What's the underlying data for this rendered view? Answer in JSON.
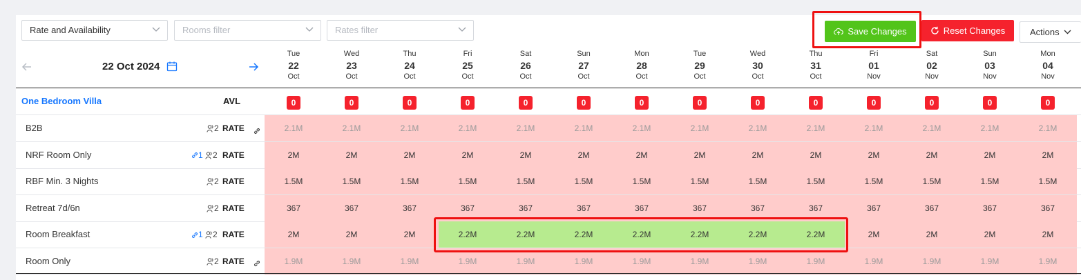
{
  "toolbar": {
    "view_select": "Rate and Availability",
    "rooms_filter_placeholder": "Rooms filter",
    "rates_filter_placeholder": "Rates filter",
    "save_label": "Save Changes",
    "reset_label": "Reset Changes",
    "actions_label": "Actions"
  },
  "date_nav": {
    "current_date": "22 Oct 2024"
  },
  "days": [
    {
      "dow": "Tue",
      "day": "22",
      "month": "Oct"
    },
    {
      "dow": "Wed",
      "day": "23",
      "month": "Oct"
    },
    {
      "dow": "Thu",
      "day": "24",
      "month": "Oct"
    },
    {
      "dow": "Fri",
      "day": "25",
      "month": "Oct"
    },
    {
      "dow": "Sat",
      "day": "26",
      "month": "Oct"
    },
    {
      "dow": "Sun",
      "day": "27",
      "month": "Oct"
    },
    {
      "dow": "Mon",
      "day": "28",
      "month": "Oct"
    },
    {
      "dow": "Tue",
      "day": "29",
      "month": "Oct"
    },
    {
      "dow": "Wed",
      "day": "30",
      "month": "Oct"
    },
    {
      "dow": "Thu",
      "day": "31",
      "month": "Oct"
    },
    {
      "dow": "Fri",
      "day": "01",
      "month": "Nov"
    },
    {
      "dow": "Sat",
      "day": "02",
      "month": "Nov"
    },
    {
      "dow": "Sun",
      "day": "03",
      "month": "Nov"
    },
    {
      "dow": "Mon",
      "day": "04",
      "month": "Nov"
    }
  ],
  "room": {
    "name": "One Bedroom Villa",
    "avl_label": "AVL",
    "availability": [
      "0",
      "0",
      "0",
      "0",
      "0",
      "0",
      "0",
      "0",
      "0",
      "0",
      "0",
      "0",
      "0",
      "0"
    ]
  },
  "rate_label": "RATE",
  "rates": [
    {
      "name": "B2B",
      "linked": "",
      "occupancy": "2",
      "derived": true,
      "values": [
        "2.1M",
        "2.1M",
        "2.1M",
        "2.1M",
        "2.1M",
        "2.1M",
        "2.1M",
        "2.1M",
        "2.1M",
        "2.1M",
        "2.1M",
        "2.1M",
        "2.1M",
        "2.1M"
      ],
      "changed": []
    },
    {
      "name": "NRF Room Only",
      "linked": "1",
      "occupancy": "2",
      "derived": false,
      "values": [
        "2M",
        "2M",
        "2M",
        "2M",
        "2M",
        "2M",
        "2M",
        "2M",
        "2M",
        "2M",
        "2M",
        "2M",
        "2M",
        "2M"
      ],
      "changed": []
    },
    {
      "name": "RBF Min. 3 Nights",
      "linked": "",
      "occupancy": "2",
      "derived": false,
      "values": [
        "1.5M",
        "1.5M",
        "1.5M",
        "1.5M",
        "1.5M",
        "1.5M",
        "1.5M",
        "1.5M",
        "1.5M",
        "1.5M",
        "1.5M",
        "1.5M",
        "1.5M",
        "1.5M"
      ],
      "changed": []
    },
    {
      "name": "Retreat 7d/6n",
      "linked": "",
      "occupancy": "2",
      "derived": false,
      "values": [
        "367",
        "367",
        "367",
        "367",
        "367",
        "367",
        "367",
        "367",
        "367",
        "367",
        "367",
        "367",
        "367",
        "367"
      ],
      "changed": []
    },
    {
      "name": "Room Breakfast",
      "linked": "1",
      "occupancy": "2",
      "derived": false,
      "values": [
        "2M",
        "2M",
        "2M",
        "2.2M",
        "2.2M",
        "2.2M",
        "2.2M",
        "2.2M",
        "2.2M",
        "2.2M",
        "2M",
        "2M",
        "2M",
        "2M"
      ],
      "changed": [
        3,
        4,
        5,
        6,
        7,
        8,
        9
      ]
    },
    {
      "name": "Room Only",
      "linked": "",
      "occupancy": "2",
      "derived": true,
      "values": [
        "1.9M",
        "1.9M",
        "1.9M",
        "1.9M",
        "1.9M",
        "1.9M",
        "1.9M",
        "1.9M",
        "1.9M",
        "1.9M",
        "1.9M",
        "1.9M",
        "1.9M",
        "1.9M"
      ],
      "changed": []
    }
  ],
  "colors": {
    "accent_blue": "#1677ff",
    "save_green": "#52c41a",
    "reset_red": "#f5222d",
    "closed_cell": "#ffcccb",
    "changed_cell": "#b7eb8f"
  }
}
